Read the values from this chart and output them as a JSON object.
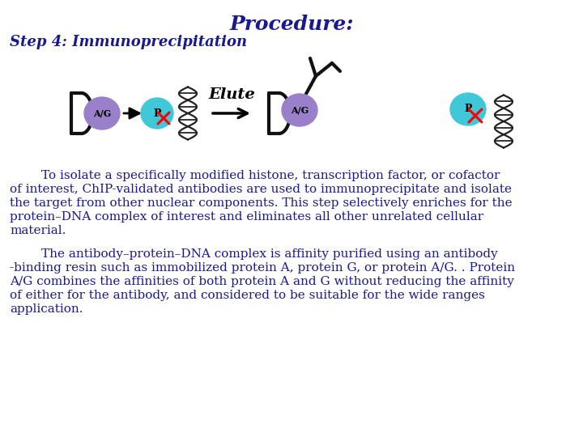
{
  "title": "Procedure:",
  "subtitle": "Step 4: Immunoprecipitation",
  "title_color": "#1a1a8e",
  "subtitle_color": "#1a1a8e",
  "bg_color": "#ffffff",
  "para1_lines": [
    "        To isolate a specifically modified histone, transcription factor, or cofactor",
    "of interest, ChIP-validated antibodies are used to immunoprecipitate and isolate",
    "the target from other nuclear components. This step selectively enriches for the",
    "protein–DNA complex of interest and eliminates all other unrelated cellular",
    "material."
  ],
  "para2_lines": [
    "        The antibody–protein–DNA complex is affinity purified using an antibody",
    "-binding resin such as immobilized protein A, protein G, or protein A/G. . Protein",
    "A/G combines the affinities of both protein A and G without reducing the affinity",
    "of either for the antibody, and considered to be suitable for the wide ranges",
    "application."
  ],
  "elute_text": "Elute",
  "text_color": "#1a1a8e",
  "body_font_size": 11.0,
  "title_font_size": 18,
  "subtitle_font_size": 13,
  "ag_color": "#9980c8",
  "p_color": "#40c8d8",
  "dna_color": "#333333",
  "antibody_color": "#111111"
}
